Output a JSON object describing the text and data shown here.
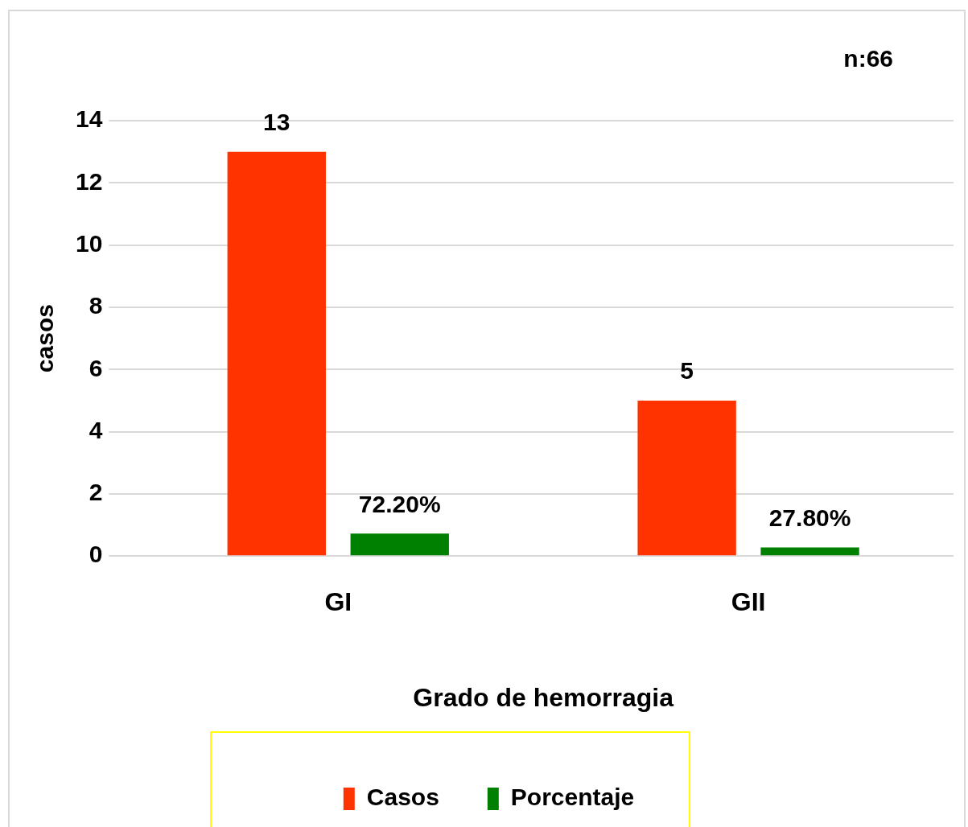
{
  "chart_data": {
    "type": "bar",
    "xlabel": "Grado de hemorragia",
    "ylabel": "casos",
    "annotations": [
      "n:66"
    ],
    "categories": [
      "GI",
      "GII"
    ],
    "series": [
      {
        "name": "Casos",
        "color": "#ff3300",
        "values": [
          13,
          5
        ],
        "value_labels": [
          "13",
          "5"
        ]
      },
      {
        "name": "Porcentaje",
        "color": "#008000",
        "values": [
          0.722,
          0.278
        ],
        "value_labels": [
          "72.20%",
          "27.80%"
        ]
      }
    ],
    "ylim": [
      0,
      14
    ],
    "yticks": [
      0,
      2,
      4,
      6,
      8,
      10,
      12,
      14
    ],
    "grid": "y",
    "legend": "bottom"
  }
}
